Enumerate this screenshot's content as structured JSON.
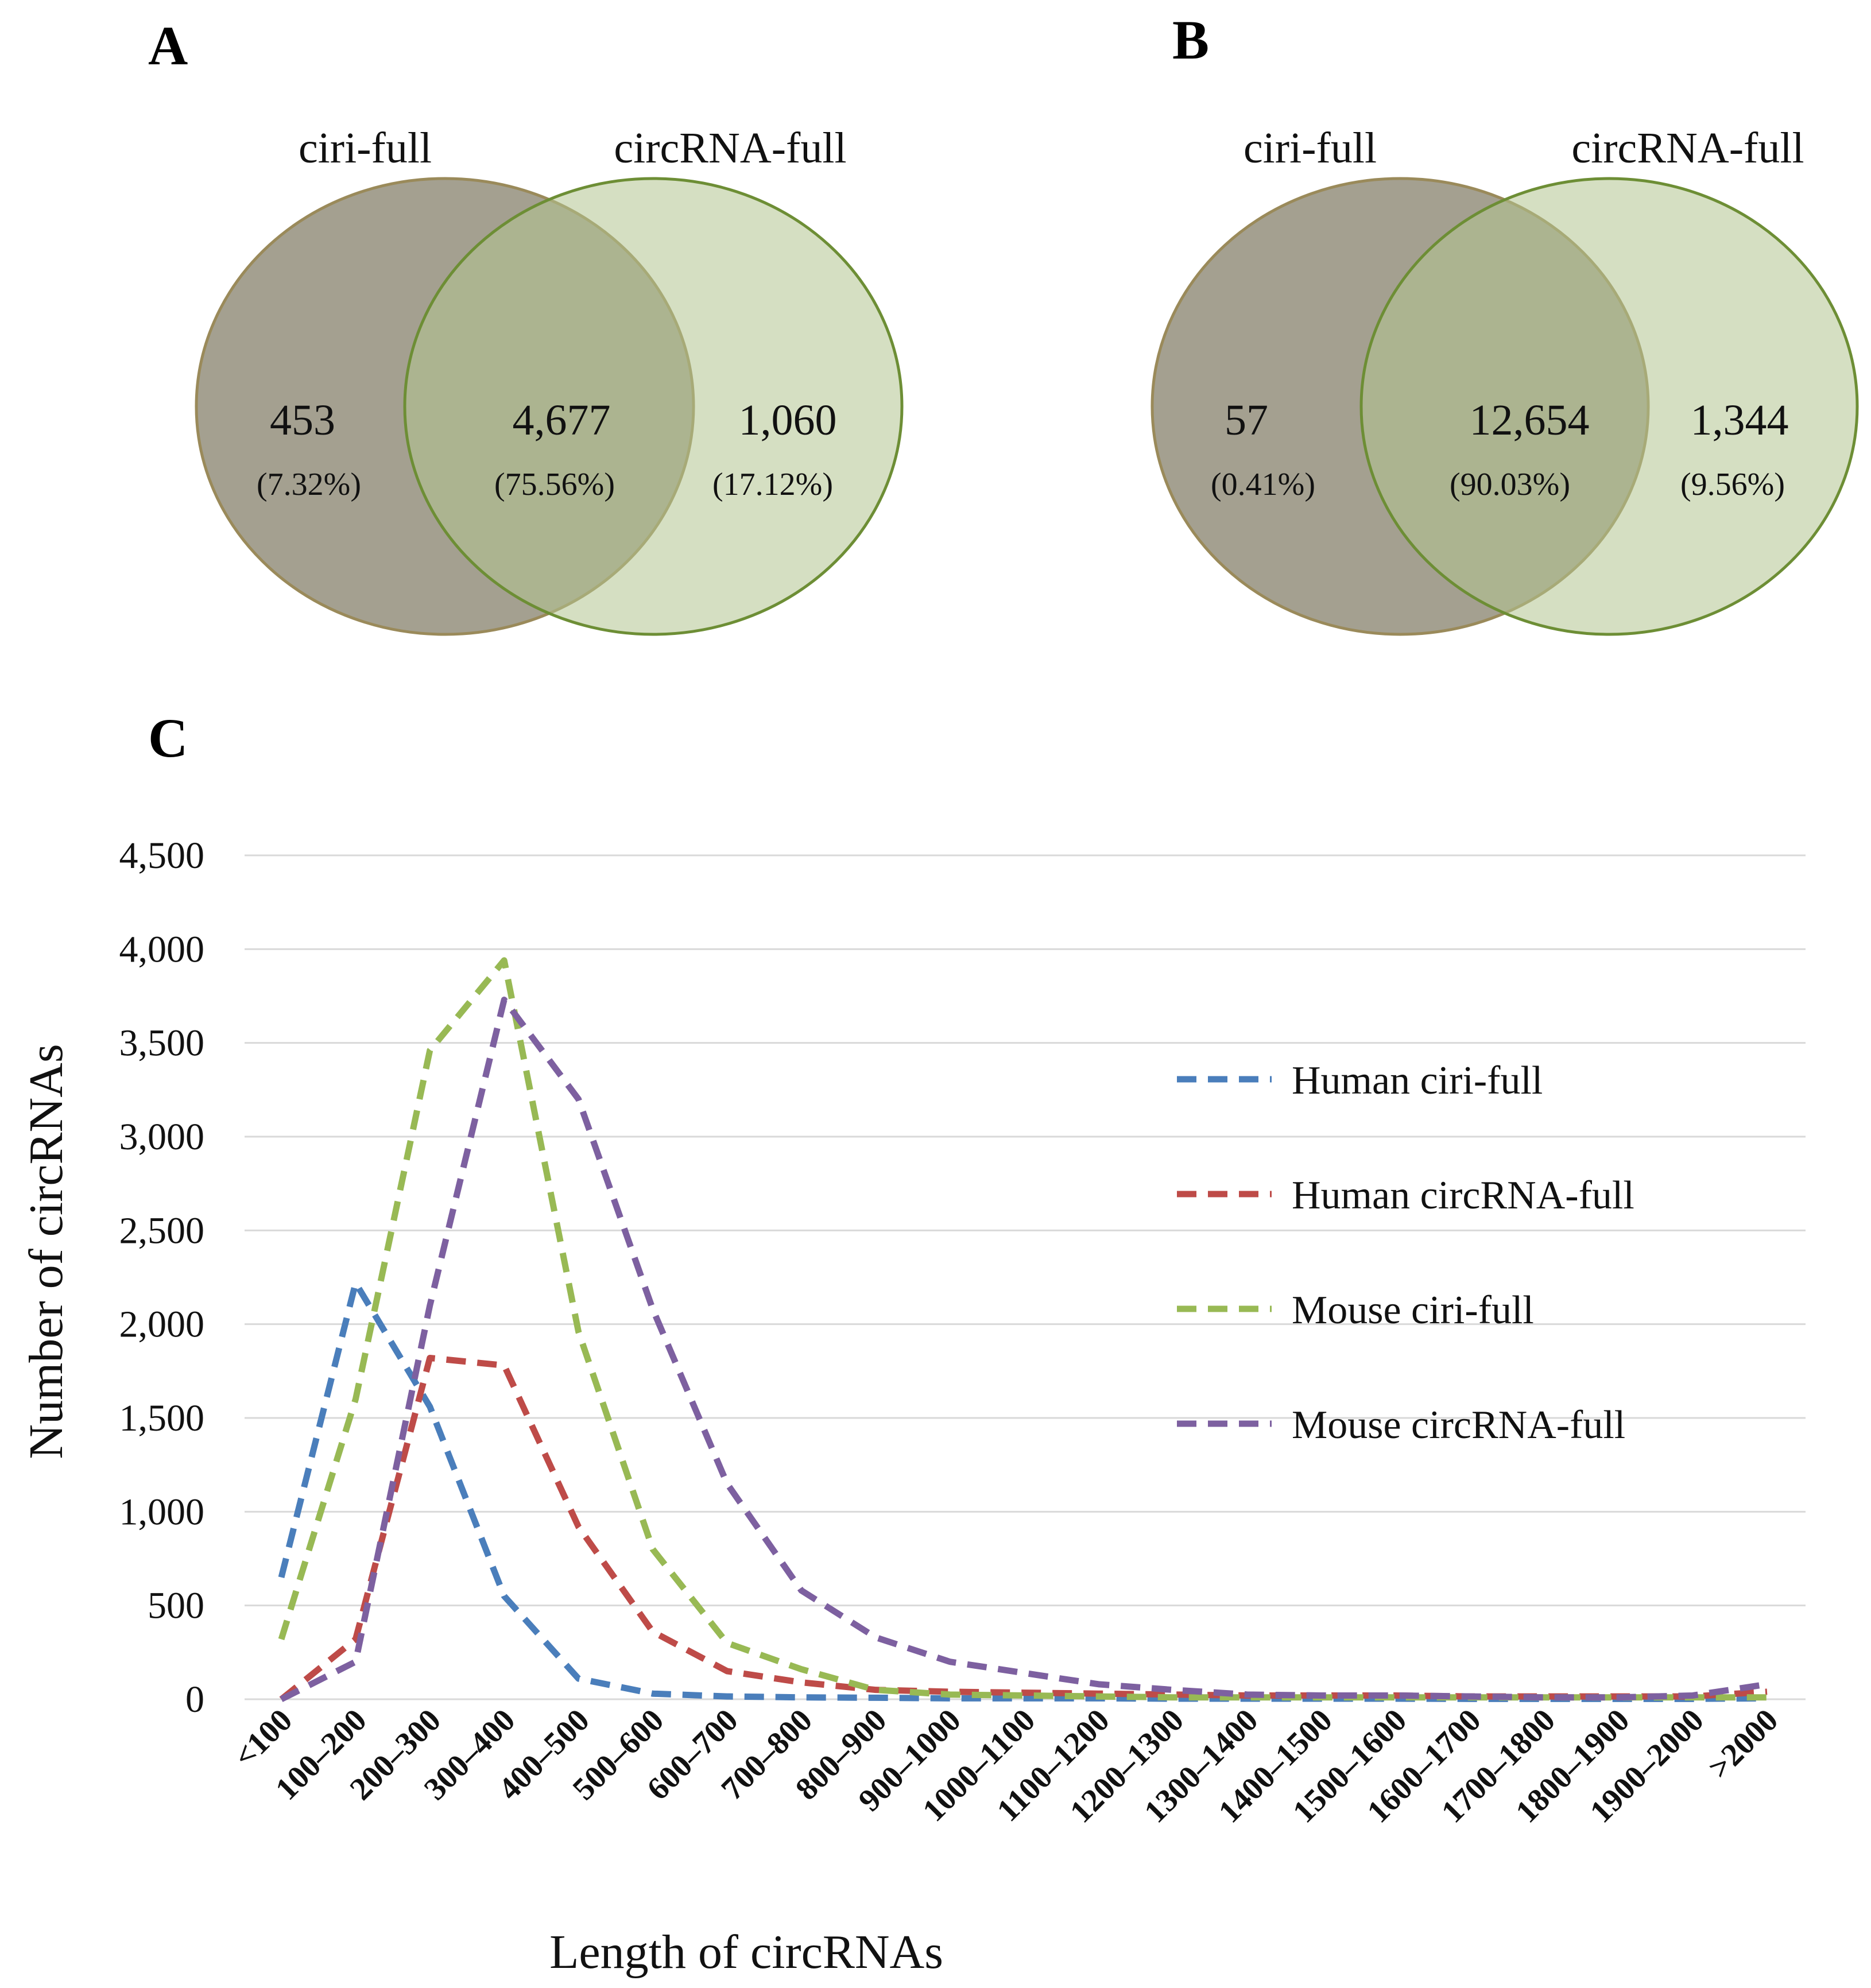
{
  "panels": {
    "A": {
      "letter": "A",
      "left_label": "ciri-full",
      "right_label": "circRNA-full",
      "left_only": "453",
      "left_only_pct": "(7.32%)",
      "overlap": "4,677",
      "overlap_pct": "(75.56%)",
      "right_only": "1,060",
      "right_only_pct": "(17.12%)"
    },
    "B": {
      "letter": "B",
      "left_label": "ciri-full",
      "right_label": "circRNA-full",
      "left_only": "57",
      "left_only_pct": "(0.41%)",
      "overlap": "12,654",
      "overlap_pct": "(90.03%)",
      "right_only": "1,344",
      "right_only_pct": "(9.56%)"
    },
    "C": {
      "letter": "C"
    }
  },
  "colors": {
    "venn_left_fill": "#9a9684",
    "venn_left_stroke": "#9a8a5a",
    "venn_right_fill": "#b3c48f",
    "venn_right_stroke": "#6d8e35",
    "venn_overlap_fill": "#8a9a64",
    "grid": "#d9d9d9"
  },
  "chart_data": {
    "type": "line",
    "title": "",
    "xlabel": "Length of circRNAs",
    "ylabel": "Number of circRNAs",
    "ylim": [
      0,
      4500
    ],
    "yticks": [
      0,
      500,
      1000,
      1500,
      2000,
      2500,
      3000,
      3500,
      4000,
      4500
    ],
    "ytick_labels": [
      "0",
      "500",
      "1,000",
      "1,500",
      "2,000",
      "2,500",
      "3,000",
      "3,500",
      "4,000",
      "4,500"
    ],
    "grid": true,
    "legend_position": "right",
    "categories": [
      "<100",
      "100–200",
      "200–300",
      "300–400",
      "400–500",
      "500–600",
      "600–700",
      "700–800",
      "800–900",
      "900–1000",
      "1000–1100",
      "1100–1200",
      "1200–1300",
      "1300–1400",
      "1400–1500",
      "1500–1600",
      "1600–1700",
      "1700–1800",
      "1800–1900",
      "1900–2000",
      ">2000"
    ],
    "series": [
      {
        "name": "Human ciri-full",
        "color": "#4a7ebb",
        "values": [
          650,
          2220,
          1560,
          550,
          110,
          30,
          15,
          10,
          8,
          5,
          5,
          5,
          3,
          3,
          3,
          3,
          2,
          2,
          2,
          2,
          5
        ]
      },
      {
        "name": "Human circRNA-full",
        "color": "#be4b48",
        "values": [
          0,
          320,
          1820,
          1780,
          920,
          360,
          150,
          90,
          50,
          40,
          35,
          30,
          25,
          20,
          20,
          20,
          15,
          15,
          15,
          15,
          40
        ]
      },
      {
        "name": "Mouse ciri-full",
        "color": "#98b954",
        "values": [
          320,
          1600,
          3460,
          3940,
          1960,
          800,
          300,
          160,
          50,
          25,
          20,
          15,
          10,
          10,
          10,
          10,
          10,
          10,
          10,
          10,
          10
        ]
      },
      {
        "name": "Mouse circRNA-full",
        "color": "#7d60a0",
        "values": [
          0,
          200,
          2100,
          3730,
          3200,
          2080,
          1150,
          580,
          330,
          200,
          140,
          80,
          50,
          25,
          20,
          20,
          15,
          10,
          10,
          20,
          80
        ]
      }
    ]
  }
}
